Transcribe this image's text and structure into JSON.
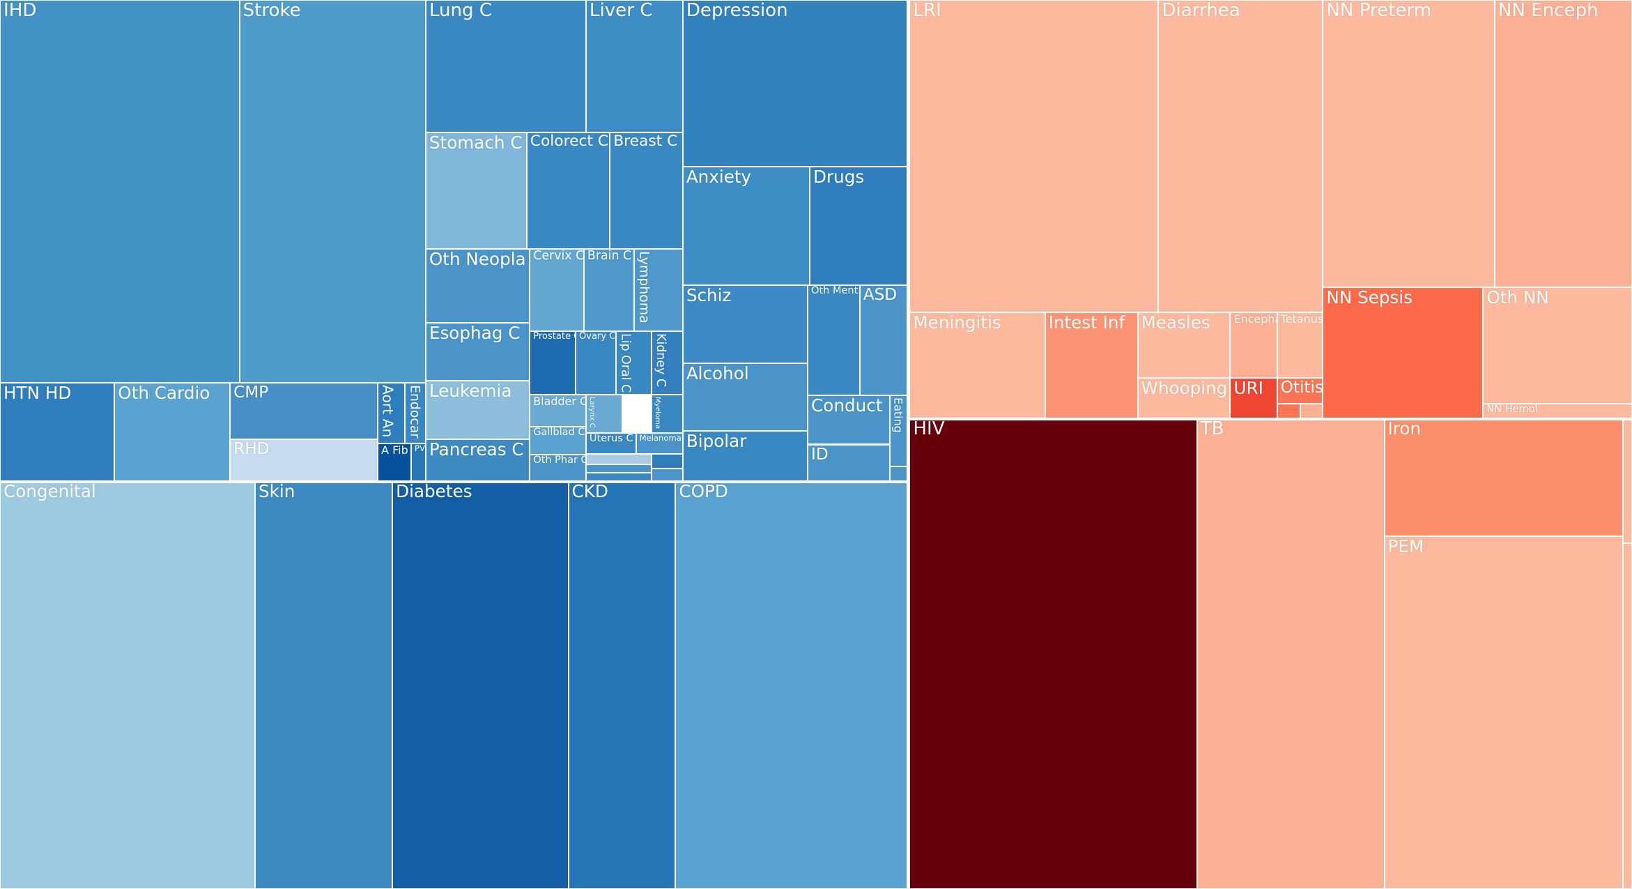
{
  "chart_data": {
    "type": "treemap",
    "title": "",
    "groups": [
      {
        "name": "Non-communicable",
        "palette": "blues",
        "items": [
          {
            "label": "IHD",
            "value": 60,
            "color": "#4292c6"
          },
          {
            "label": "Stroke",
            "value": 55,
            "color": "#4f9ccb"
          },
          {
            "label": "HTN HD",
            "value": 6.5,
            "color": "#2f7dbc"
          },
          {
            "label": "Oth Cardio",
            "value": 6.8,
            "color": "#5aa2cf"
          },
          {
            "label": "CMP",
            "value": 3.9,
            "color": "#4690c7"
          },
          {
            "label": "RHD",
            "value": 3.5,
            "color": "#c6dbef"
          },
          {
            "label": "Aort An",
            "value": 1.2,
            "color": "#2f7dbc"
          },
          {
            "label": "Endocar",
            "value": 0.8,
            "color": "#3a88c2"
          },
          {
            "label": "A Fib",
            "value": 1.1,
            "color": "#08519c"
          },
          {
            "label": "PVD",
            "value": 0.5,
            "color": "#2878b8"
          },
          {
            "label": "Lung C",
            "value": 12,
            "color": "#3b89c3"
          },
          {
            "label": "Liver C",
            "value": 7.5,
            "color": "#3f8dc5"
          },
          {
            "label": "Stomach C",
            "value": 7.0,
            "color": "#80b6da"
          },
          {
            "label": "Colorect C",
            "value": 5.5,
            "color": "#3a88c2"
          },
          {
            "label": "Breast C",
            "value": 4.5,
            "color": "#3a88c2"
          },
          {
            "label": "Oth Neopla",
            "value": 4.0,
            "color": "#4a94c9"
          },
          {
            "label": "Esophag C",
            "value": 3.5,
            "color": "#4a94c9"
          },
          {
            "label": "Leukemia",
            "value": 3.5,
            "color": "#8cbedc"
          },
          {
            "label": "Pancreas C",
            "value": 3.0,
            "color": "#3e8bc4"
          },
          {
            "label": "Cervix C",
            "value": 2.0,
            "color": "#63a7d1"
          },
          {
            "label": "Brain C",
            "value": 1.9,
            "color": "#4e98ca"
          },
          {
            "label": "Lymphoma",
            "value": 1.8,
            "color": "#4e98ca"
          },
          {
            "label": "Prostate C",
            "value": 1.8,
            "color": "#1f6bb0"
          },
          {
            "label": "Ovary C",
            "value": 1.4,
            "color": "#3a88c2"
          },
          {
            "label": "Lip Oral C",
            "value": 1.2,
            "color": "#3a88c2"
          },
          {
            "label": "Kidney C",
            "value": 1.1,
            "color": "#3480bf"
          },
          {
            "label": "Bladder C",
            "value": 1.0,
            "color": "#6aaad3"
          },
          {
            "label": "Larynx C",
            "value": 0.5,
            "color": "#6aaad3"
          },
          {
            "label": "Myeloma",
            "value": 0.5,
            "color": "#3a88c2"
          },
          {
            "label": "Gallblad C",
            "value": 0.8,
            "color": "#5aa2cf"
          },
          {
            "label": "Uterus C",
            "value": 0.5,
            "color": "#3a88c2"
          },
          {
            "label": "Melanoma",
            "value": 0.5,
            "color": "#4a94c9"
          },
          {
            "label": "Oth Phar C",
            "value": 0.7,
            "color": "#4a94c9"
          },
          {
            "label": "Depression",
            "value": 15,
            "color": "#3282be"
          },
          {
            "label": "Anxiety",
            "value": 9.5,
            "color": "#3f8dc5"
          },
          {
            "label": "Drugs",
            "value": 7.5,
            "color": "#2f7dbc"
          },
          {
            "label": "Schiz",
            "value": 6.8,
            "color": "#3d8ac4"
          },
          {
            "label": "Alcohol",
            "value": 5.5,
            "color": "#4a94c9"
          },
          {
            "label": "Bipolar",
            "value": 4.7,
            "color": "#3a88c2"
          },
          {
            "label": "Oth Ment",
            "value": 4.6,
            "color": "#3a88c2"
          },
          {
            "label": "ASD",
            "value": 4.2,
            "color": "#4a94c9"
          },
          {
            "label": "Conduct",
            "value": 2.5,
            "color": "#4a94c9"
          },
          {
            "label": "ID",
            "value": 1.9,
            "color": "#4a94c9"
          },
          {
            "label": "Eating",
            "value": 0.8,
            "color": "#4a94c9"
          },
          {
            "label": "Congenital",
            "value": 16,
            "color": "#9ecae1"
          },
          {
            "label": "Skin",
            "value": 8.5,
            "color": "#3e8bc4"
          },
          {
            "label": "Diabetes",
            "value": 11,
            "color": "#135ea5"
          },
          {
            "label": "CKD",
            "value": 6.5,
            "color": "#2574b6"
          },
          {
            "label": "COPD",
            "value": 14,
            "color": "#5aa2cf"
          }
        ]
      },
      {
        "name": "Communicable",
        "palette": "reds",
        "items": [
          {
            "label": "LRI",
            "value": 26,
            "color": "#fcb99e"
          },
          {
            "label": "Diarrhea",
            "value": 17.5,
            "color": "#fcb99e"
          },
          {
            "label": "NN Preterm",
            "value": 16.5,
            "color": "#fcb99e"
          },
          {
            "label": "NN Enceph",
            "value": 13.5,
            "color": "#fcaf93"
          },
          {
            "label": "Meningitis",
            "value": 5.8,
            "color": "#fcb99e"
          },
          {
            "label": "Intest Inf",
            "value": 4.1,
            "color": "#fc9474"
          },
          {
            "label": "Measles",
            "value": 3.2,
            "color": "#fcb99e"
          },
          {
            "label": "Encepha",
            "value": 1.3,
            "color": "#fcaf93"
          },
          {
            "label": "Tetanus",
            "value": 1.3,
            "color": "#fcb99e"
          },
          {
            "label": "Whooping",
            "value": 2.0,
            "color": "#fcb99e"
          },
          {
            "label": "URI",
            "value": 1.1,
            "color": "#ef4533"
          },
          {
            "label": "Otitis",
            "value": 0.9,
            "color": "#fb7555"
          },
          {
            "label": "NN Sepsis",
            "value": 10,
            "color": "#fb6b4b"
          },
          {
            "label": "Oth NN",
            "value": 9,
            "color": "#fcb99e"
          },
          {
            "label": "NN Hemol",
            "value": 1,
            "color": "#fcb99e"
          },
          {
            "label": "HIV",
            "value": 25,
            "color": "#67000d"
          },
          {
            "label": "TB",
            "value": 14,
            "color": "#fcaf93"
          },
          {
            "label": "Iron",
            "value": 9,
            "color": "#fc8d6b"
          },
          {
            "label": "PEM",
            "value": 7,
            "color": "#fcb99e"
          }
        ]
      }
    ]
  }
}
